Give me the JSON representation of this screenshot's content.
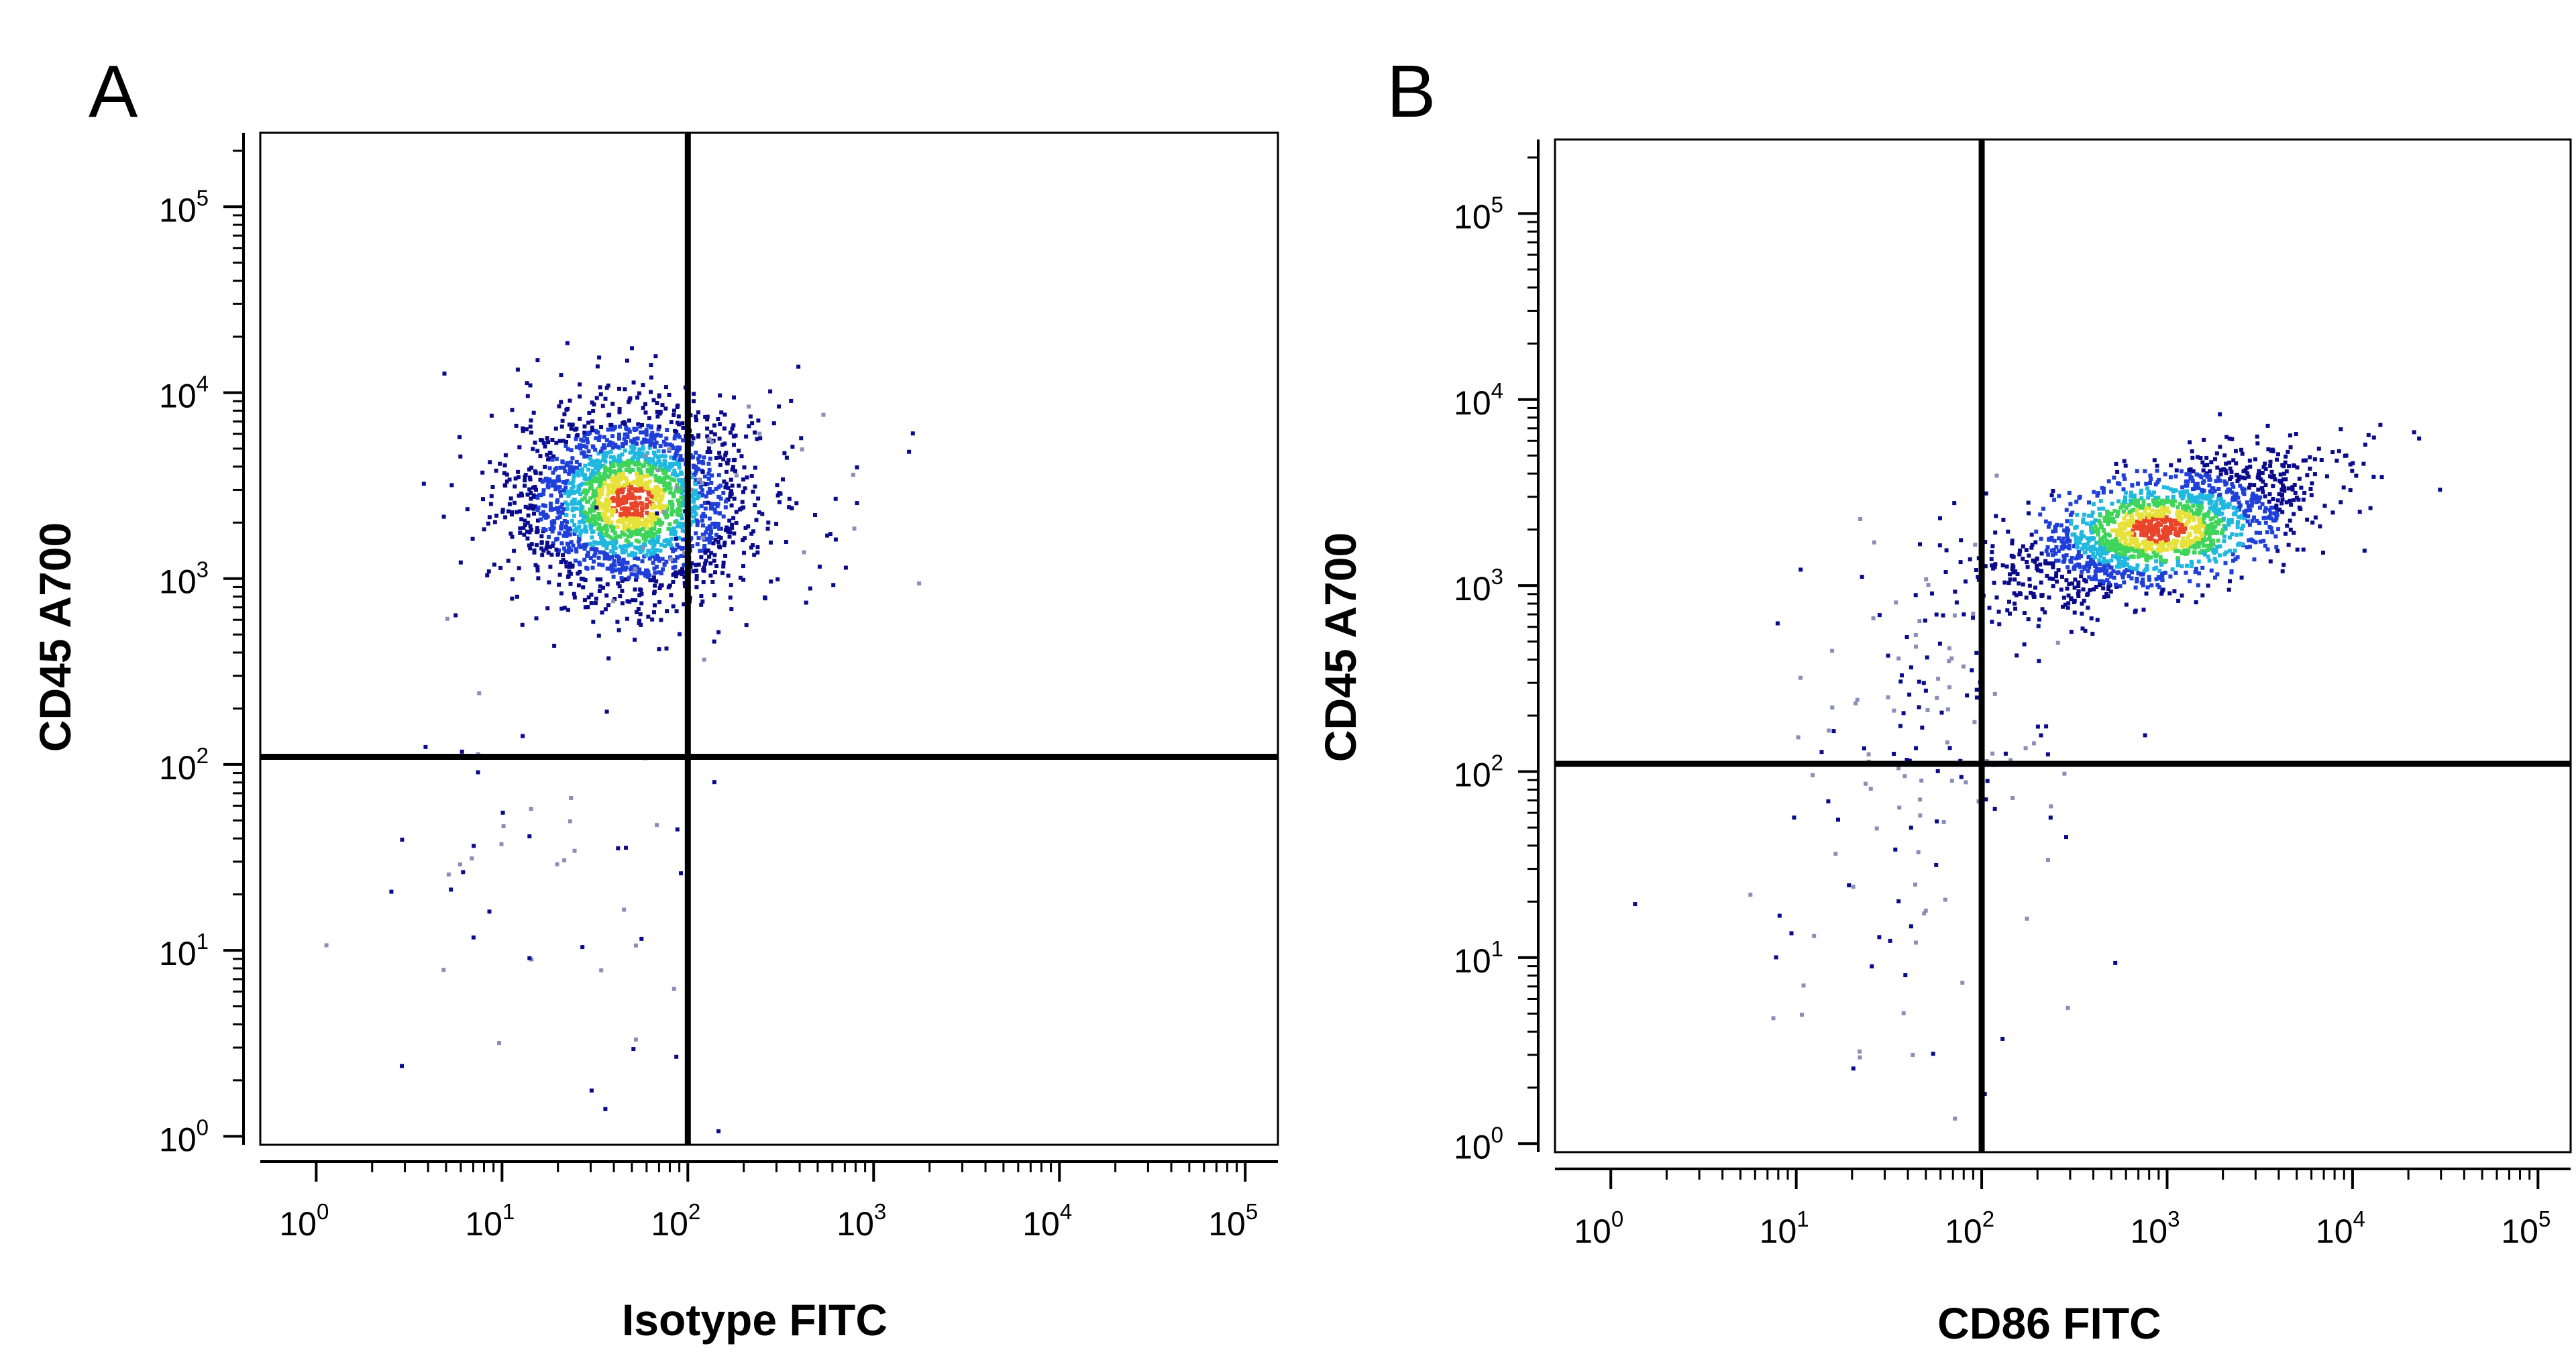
{
  "chart_data": [
    {
      "panel": "A",
      "type": "scatter",
      "xlabel": "Isotype FITC",
      "ylabel": "CD45 A700",
      "xscale": "log",
      "yscale": "log",
      "xlim": [
        0.5,
        150000
      ],
      "ylim": [
        0.9,
        250000
      ],
      "x_ticks": [
        "10^0",
        "10^1",
        "10^2",
        "10^3",
        "10^4",
        "10^5"
      ],
      "y_ticks": [
        "10^0",
        "10^1",
        "10^2",
        "10^3",
        "10^4",
        "10^5"
      ],
      "quadrant_gate": {
        "x": 100,
        "y": 110
      },
      "grid": false,
      "legend": "none",
      "colormap": [
        "#0a0a8c",
        "#1f3fd8",
        "#21b8e0",
        "#3fd45a",
        "#e7e23a",
        "#e8452b"
      ],
      "series": [
        {
          "population": "main-cluster",
          "density": "high",
          "n": 2200,
          "center": [
            50,
            2600
          ],
          "spread_log": [
            0.32,
            0.26
          ]
        },
        {
          "population": "upper-tail",
          "density": "low",
          "n": 60,
          "center": [
            140,
            2800
          ],
          "spread_log": [
            0.45,
            0.35
          ]
        },
        {
          "population": "low-events",
          "density": "low",
          "n": 55,
          "center": [
            20,
            15
          ],
          "spread_log": [
            0.55,
            0.7
          ]
        }
      ]
    },
    {
      "panel": "B",
      "type": "scatter",
      "xlabel": "CD86 FITC",
      "ylabel": "CD45 A700",
      "xscale": "log",
      "yscale": "log",
      "xlim": [
        0.5,
        150000
      ],
      "ylim": [
        0.9,
        250000
      ],
      "x_ticks": [
        "10^0",
        "10^1",
        "10^2",
        "10^3",
        "10^4",
        "10^5"
      ],
      "y_ticks": [
        "10^0",
        "10^1",
        "10^2",
        "10^3",
        "10^4",
        "10^5"
      ],
      "quadrant_gate": {
        "x": 100,
        "y": 110
      },
      "grid": false,
      "legend": "none",
      "colormap": [
        "#0a0a8c",
        "#1f3fd8",
        "#21b8e0",
        "#3fd45a",
        "#e7e23a",
        "#e8452b"
      ],
      "series": [
        {
          "population": "main-cluster",
          "density": "high",
          "n": 1700,
          "center": [
            900,
            2000
          ],
          "spread_log": [
            0.42,
            0.2
          ],
          "correlation": 0.6
        },
        {
          "population": "diagonal-tail",
          "density": "low",
          "n": 130,
          "center": [
            60,
            250
          ],
          "spread_log": [
            0.35,
            0.45
          ]
        },
        {
          "population": "low-events",
          "density": "low",
          "n": 40,
          "center": [
            30,
            12
          ],
          "spread_log": [
            0.5,
            0.6
          ]
        }
      ]
    }
  ]
}
